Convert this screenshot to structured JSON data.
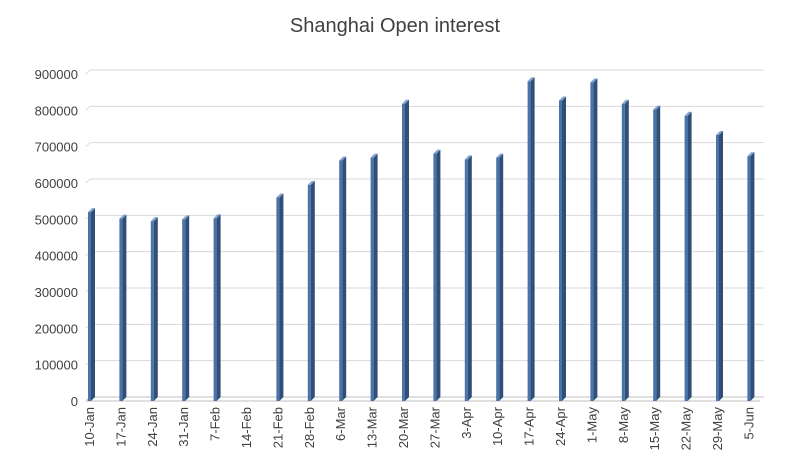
{
  "chart_data": {
    "type": "bar",
    "title": "Shanghai Open interest",
    "xlabel": "",
    "ylabel": "",
    "categories": [
      "10-Jan",
      "17-Jan",
      "24-Jan",
      "31-Jan",
      "7-Feb",
      "14-Feb",
      "21-Feb",
      "28-Feb",
      "6-Mar",
      "13-Mar",
      "20-Mar",
      "27-Mar",
      "3-Apr",
      "10-Apr",
      "17-Apr",
      "24-Apr",
      "1-May",
      "8-May",
      "15-May",
      "22-May",
      "29-May",
      "5-Jun"
    ],
    "values": [
      520000,
      502000,
      495000,
      500000,
      503000,
      null,
      560000,
      595000,
      662000,
      670000,
      818000,
      681000,
      665000,
      670000,
      880000,
      827000,
      877000,
      818000,
      802000,
      785000,
      732000,
      674000
    ],
    "ylim": [
      0,
      900000
    ],
    "yticks": [
      "0",
      "100000",
      "200000",
      "300000",
      "400000",
      "500000",
      "600000",
      "700000",
      "800000",
      "900000"
    ],
    "grid": true,
    "legend": "none",
    "bar_color": "#4a73a8",
    "bar_side_color": "#2f4f78",
    "bar_top_color": "#7fa2cf"
  }
}
